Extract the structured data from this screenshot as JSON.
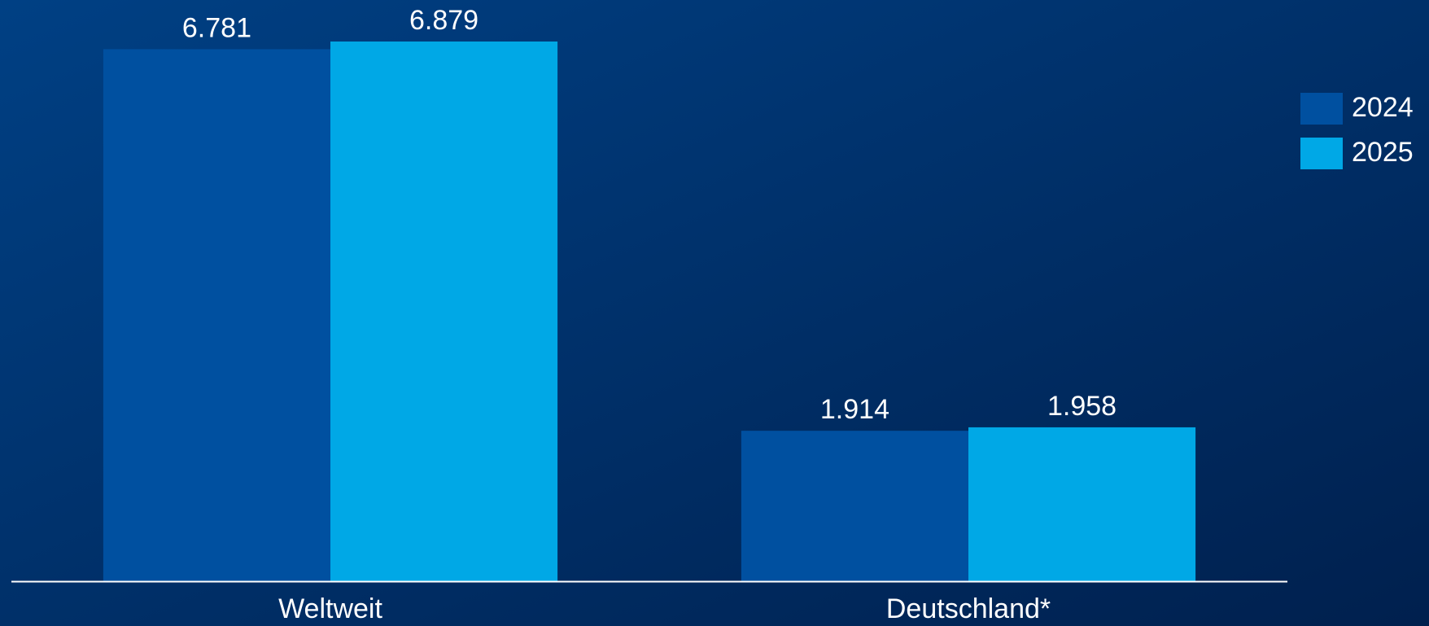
{
  "chart_data": {
    "type": "bar",
    "categories": [
      "Weltweit",
      "Deutschland*"
    ],
    "series": [
      {
        "name": "2024",
        "color": "#0050a0",
        "values": [
          6.781,
          1.914
        ]
      },
      {
        "name": "2025",
        "color": "#00a8e6",
        "values": [
          6.879,
          1.958
        ]
      }
    ],
    "legend": "right"
  }
}
